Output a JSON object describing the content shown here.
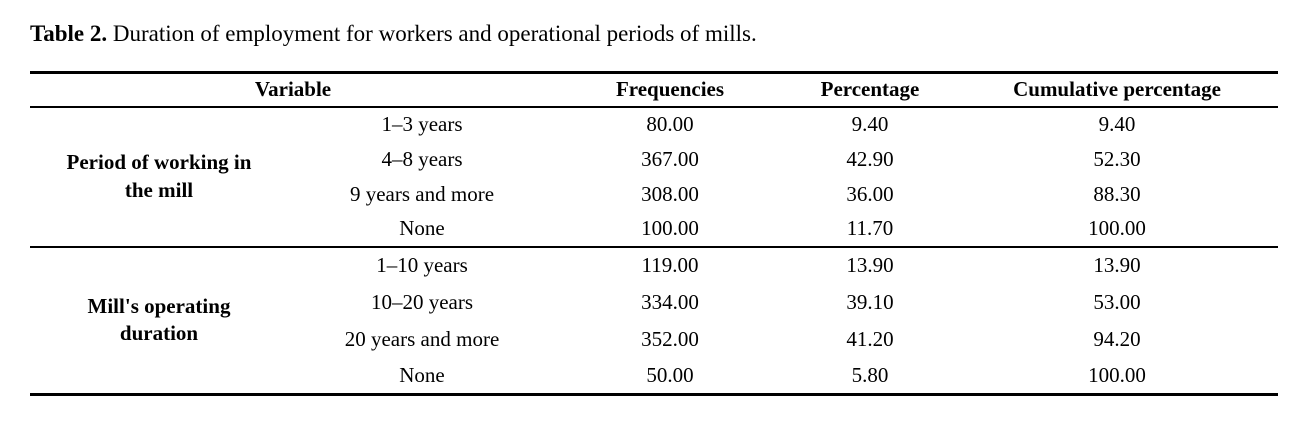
{
  "caption": {
    "label": "Table 2.",
    "text": "Duration of employment for workers and operational periods of mills."
  },
  "table": {
    "headers": {
      "variable": "Variable",
      "frequencies": "Frequencies",
      "percentage": "Percentage",
      "cumulative": "Cumulative percentage"
    },
    "groups": [
      {
        "label": "Period of working in the mill",
        "rows": [
          {
            "category": "1–3 years",
            "frequency": "80.00",
            "percentage": "9.40",
            "cumulative": "9.40"
          },
          {
            "category": "4–8 years",
            "frequency": "367.00",
            "percentage": "42.90",
            "cumulative": "52.30"
          },
          {
            "category": "9 years and more",
            "frequency": "308.00",
            "percentage": "36.00",
            "cumulative": "88.30"
          },
          {
            "category": "None",
            "frequency": "100.00",
            "percentage": "11.70",
            "cumulative": "100.00"
          }
        ]
      },
      {
        "label": "Mill's operating duration",
        "rows": [
          {
            "category": "1–10 years",
            "frequency": "119.00",
            "percentage": "13.90",
            "cumulative": "13.90"
          },
          {
            "category": "10–20 years",
            "frequency": "334.00",
            "percentage": "39.10",
            "cumulative": "53.00"
          },
          {
            "category": "20 years and more",
            "frequency": "352.00",
            "percentage": "41.20",
            "cumulative": "94.20"
          },
          {
            "category": "None",
            "frequency": "50.00",
            "percentage": "5.80",
            "cumulative": "100.00"
          }
        ]
      }
    ]
  }
}
